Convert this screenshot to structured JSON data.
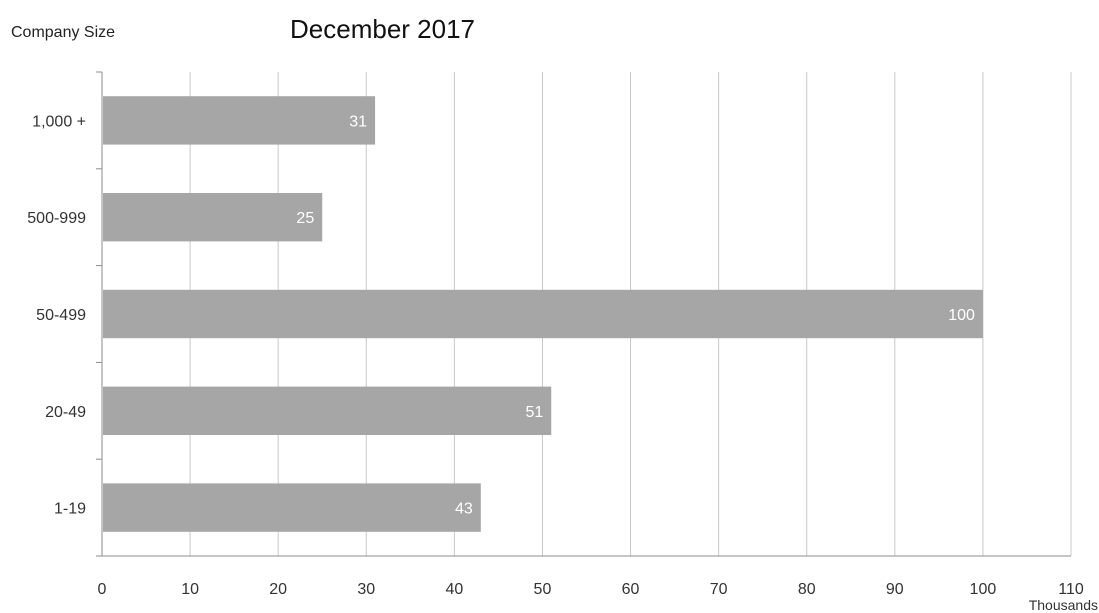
{
  "chart_data": {
    "type": "bar",
    "orientation": "horizontal",
    "title": "December 2017",
    "ylabel": "Company Size",
    "xlabel": "",
    "x_unit_label": "Thousands",
    "categories": [
      "1,000 +",
      "500-999",
      "50-499",
      "20-49",
      "1-19"
    ],
    "values": [
      31,
      25,
      100,
      51,
      43
    ],
    "data_labels": [
      "31",
      "25",
      "100",
      "51",
      "43"
    ],
    "xlim": [
      0,
      110
    ],
    "x_ticks": [
      0,
      10,
      20,
      30,
      40,
      50,
      60,
      70,
      80,
      90,
      100,
      110
    ],
    "grid": true,
    "legend": "none",
    "colors": {
      "bar": "#a6a6a6",
      "grid": "#c8c8c8",
      "axis": "#8c8c8c",
      "data_label": "#ffffff"
    }
  }
}
